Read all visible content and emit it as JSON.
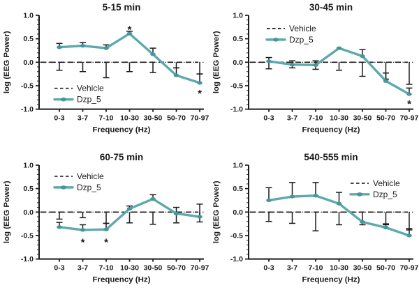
{
  "figure": {
    "xlabel": "Frequency (Hz)",
    "ylabel": "log (EEG Power)",
    "categories": [
      "0-3",
      "3-7",
      "7-10",
      "10-30",
      "30-50",
      "50-70",
      "70-97"
    ],
    "ytick_values": [
      1.0,
      0.5,
      0.0,
      -0.5,
      -1.0
    ],
    "ytick_labels": [
      "1.0",
      "0.5",
      "0.0",
      "-0.5",
      "-1.0"
    ],
    "ylim": [
      -1.0,
      1.0
    ],
    "legend": {
      "vehicle_label": "Vehicle",
      "dzp_label": "Dzp_5"
    },
    "colors": {
      "dzp_line": "#5da9ac",
      "dzp_marker": "#47969b",
      "black": "#1a1a1a",
      "background": "#ffffff"
    }
  },
  "chart_data": [
    {
      "type": "line",
      "title": "5-15 min",
      "xlabel": "Frequency (Hz)",
      "ylabel": "log (EEG Power)",
      "ylim": [
        -1.0,
        1.0
      ],
      "categories": [
        "0-3",
        "3-7",
        "7-10",
        "10-30",
        "30-50",
        "50-70",
        "70-97"
      ],
      "series": [
        {
          "name": "Dzp_5",
          "values": [
            0.32,
            0.35,
            0.3,
            0.61,
            0.17,
            -0.28,
            -0.44
          ],
          "err_up": [
            0.08,
            0.07,
            0.07,
            0.05,
            0.13,
            0.16,
            0.19
          ]
        },
        {
          "name": "Vehicle",
          "values": [
            0,
            0,
            0,
            0,
            0,
            0,
            0
          ],
          "err_down": [
            0.17,
            0.2,
            0.33,
            0.2,
            0.22,
            0.12,
            0.25
          ]
        }
      ],
      "asterisks": [
        {
          "i": 3,
          "y": 0.74
        },
        {
          "i": 6,
          "y": -0.62
        }
      ],
      "legend_pos": {
        "x": 78,
        "y": 127
      },
      "legend_position_hint": "bottom-left"
    },
    {
      "type": "line",
      "title": "30-45 min",
      "xlabel": "Frequency (Hz)",
      "ylabel": "log (EEG Power)",
      "ylim": [
        -1.0,
        1.0
      ],
      "categories": [
        "0-3",
        "3-7",
        "7-10",
        "10-30",
        "30-50",
        "50-70",
        "70-97"
      ],
      "series": [
        {
          "name": "Dzp_5",
          "values": [
            0.02,
            -0.05,
            -0.06,
            0.3,
            0.13,
            -0.4,
            -0.68
          ],
          "err_up": [
            0.08,
            0.08,
            0.09,
            0.0,
            0.14,
            0.17,
            0.13
          ]
        },
        {
          "name": "Vehicle",
          "values": [
            0,
            0,
            0,
            0,
            0,
            0,
            0
          ],
          "err_down": [
            0.14,
            0.12,
            0.15,
            0.17,
            0.3,
            0.36,
            0.47
          ]
        }
      ],
      "asterisks": [
        {
          "i": 6,
          "y": -0.84
        }
      ],
      "legend_pos": {
        "x": 82,
        "y": 41
      },
      "legend_position_hint": "top-left"
    },
    {
      "type": "line",
      "title": "60-75 min",
      "xlabel": "Frequency (Hz)",
      "ylabel": "log (EEG Power)",
      "ylim": [
        -1.0,
        1.0
      ],
      "categories": [
        "0-3",
        "3-7",
        "7-10",
        "10-30",
        "30-50",
        "50-70",
        "70-97"
      ],
      "series": [
        {
          "name": "Dzp_5",
          "values": [
            -0.32,
            -0.38,
            -0.37,
            0.07,
            0.28,
            -0.03,
            -0.1
          ],
          "err_up": [
            0.1,
            0.11,
            0.13,
            0.06,
            0.09,
            0.13,
            0.27
          ]
        },
        {
          "name": "Vehicle",
          "values": [
            0,
            0,
            0,
            0,
            0,
            0,
            0
          ],
          "err_down": [
            0.15,
            0.12,
            0.24,
            0.23,
            0.26,
            0.23,
            0.21
          ]
        }
      ],
      "asterisks": [
        {
          "i": 1,
          "y": -0.6
        },
        {
          "i": 2,
          "y": -0.6
        }
      ],
      "legend_pos": {
        "x": 78,
        "y": 38
      },
      "legend_position_hint": "top-left"
    },
    {
      "type": "line",
      "title": "540-555 min",
      "xlabel": "Frequency (Hz)",
      "ylabel": "log (EEG Power)",
      "ylim": [
        -1.0,
        1.0
      ],
      "categories": [
        "0-3",
        "3-7",
        "7-10",
        "10-30",
        "30-50",
        "50-70",
        "70-97"
      ],
      "series": [
        {
          "name": "Dzp_5",
          "values": [
            0.25,
            0.33,
            0.35,
            0.18,
            -0.21,
            -0.33,
            -0.5
          ],
          "err_up": [
            0.27,
            0.3,
            0.28,
            0.24,
            0.0,
            0.08,
            0.15
          ]
        },
        {
          "name": "Vehicle",
          "values": [
            0,
            0,
            0,
            0,
            0,
            0,
            0
          ],
          "err_down": [
            0.2,
            0.24,
            0.4,
            0.27,
            0.27,
            0.27,
            0.38
          ]
        }
      ],
      "asterisks": [],
      "legend_pos": {
        "x": 202,
        "y": 48
      },
      "legend_position_hint": "top-right"
    }
  ]
}
